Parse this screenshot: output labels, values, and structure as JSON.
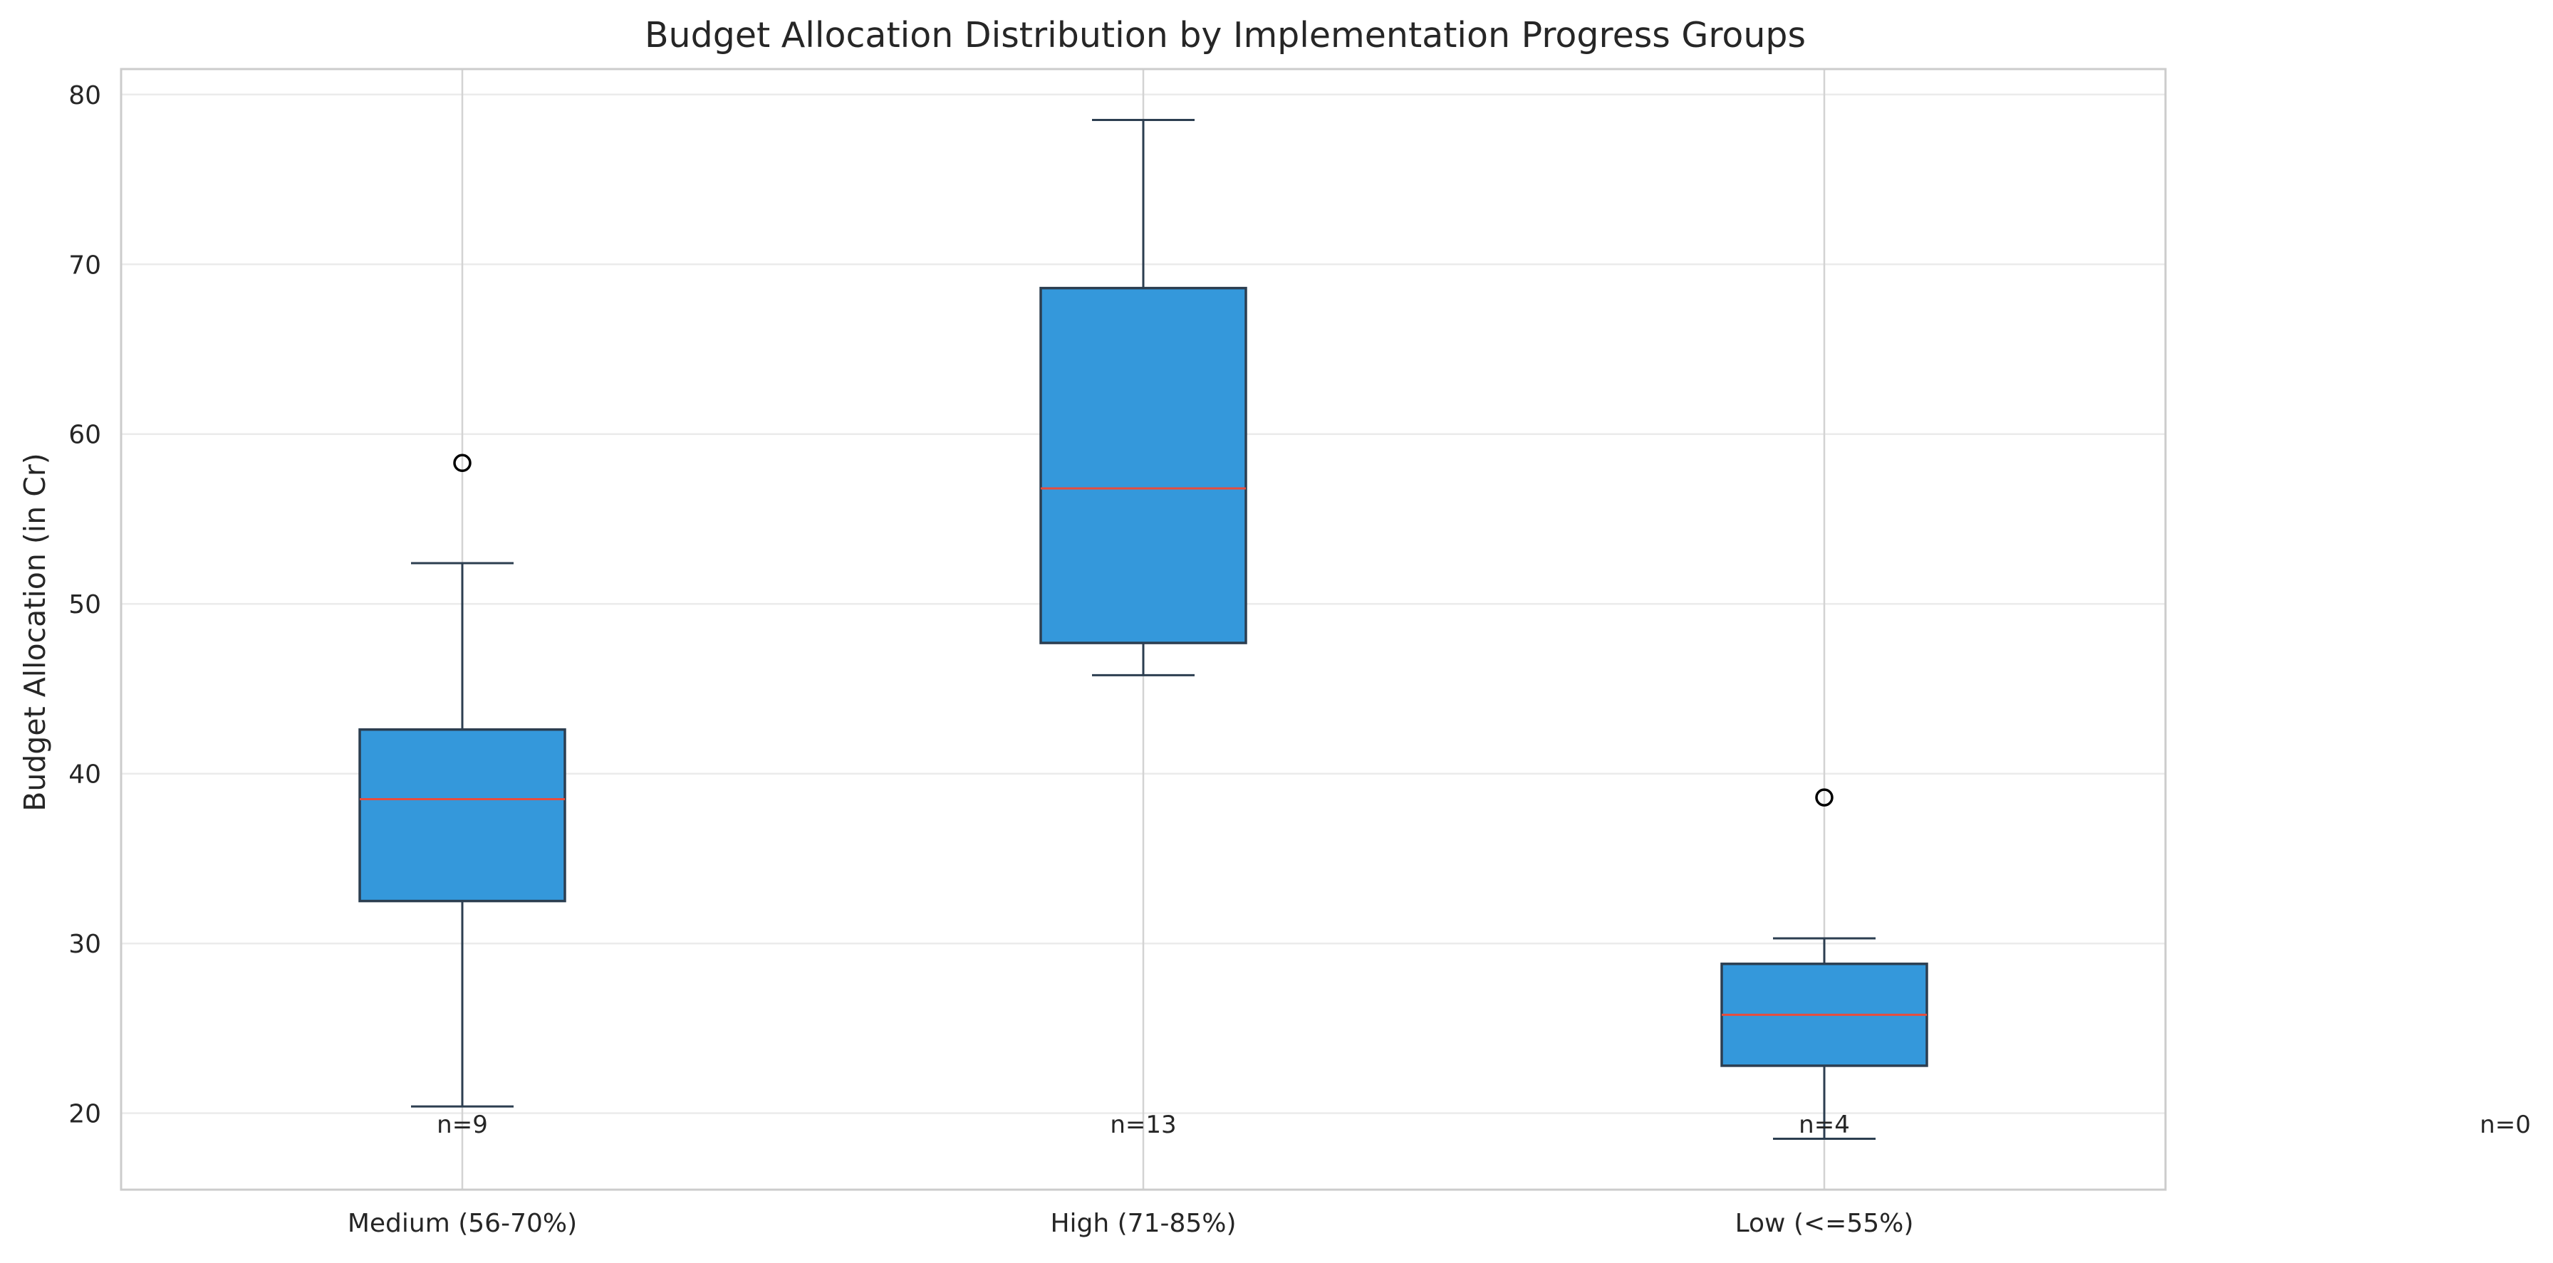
{
  "chart_data": {
    "type": "boxplot",
    "title": "Budget Allocation Distribution by Implementation Progress Groups",
    "xlabel": "",
    "ylabel": "Budget Allocation (in Cr)",
    "ylim": [
      15.5,
      81.5
    ],
    "yticks": [
      20,
      30,
      40,
      50,
      60,
      70,
      80
    ],
    "ytick_labels": [
      "20",
      "30",
      "40",
      "50",
      "60",
      "70",
      "80"
    ],
    "grid": true,
    "categories": [
      "Medium (56-70%)",
      "High (71-85%)",
      "Low (<=55%)"
    ],
    "boxes": [
      {
        "category": "Medium (56-70%)",
        "whisker_low": 20.4,
        "q1": 32.5,
        "median": 38.5,
        "q3": 42.6,
        "whisker_high": 52.4,
        "outliers": [
          58.3
        ],
        "count_label": "n=9"
      },
      {
        "category": "High (71-85%)",
        "whisker_low": 45.8,
        "q1": 47.7,
        "median": 56.8,
        "q3": 68.6,
        "whisker_high": 78.5,
        "outliers": [],
        "count_label": "n=13"
      },
      {
        "category": "Low (<=55%)",
        "whisker_low": 18.5,
        "q1": 22.8,
        "median": 25.8,
        "q3": 28.8,
        "whisker_high": 30.3,
        "outliers": [
          38.6
        ],
        "count_label": "n=4"
      }
    ],
    "extra_count_labels": [
      "n=0"
    ],
    "colors": {
      "box_fill": "#3498db",
      "box_edge": "#2c3e50",
      "median": "#e74c3c",
      "grid": "#ebebeb",
      "frame": "#cccccc"
    }
  }
}
